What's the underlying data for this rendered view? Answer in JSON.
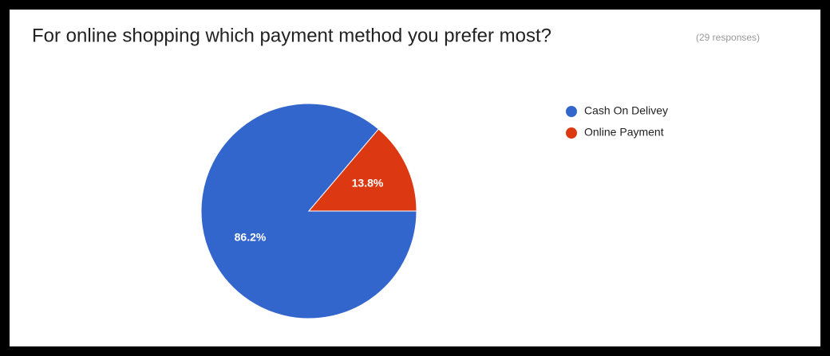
{
  "chart_data": {
    "type": "pie",
    "title": "For online shopping which payment method you prefer most?",
    "subtitle": "(29 responses)",
    "categories": [
      "Cash On Delivey",
      "Online Payment"
    ],
    "values": [
      86.2,
      13.8
    ],
    "value_labels": [
      "86.2%",
      "13.8%"
    ],
    "colors": [
      "#3366cc",
      "#dc3912"
    ],
    "legend": "right"
  }
}
